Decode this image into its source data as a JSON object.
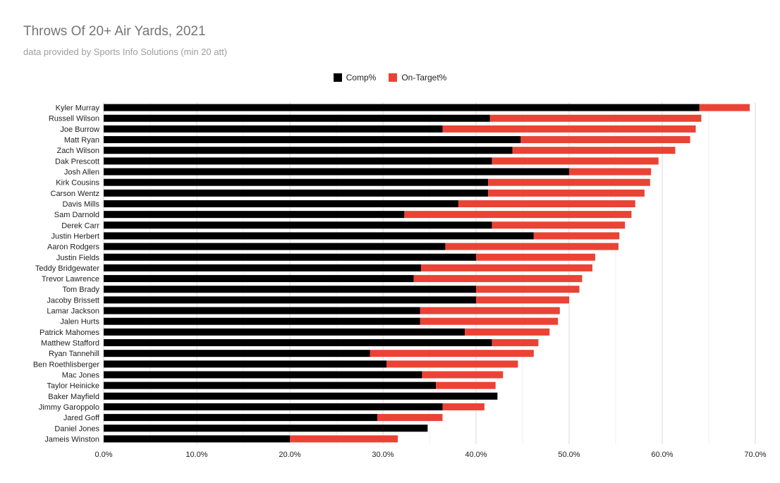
{
  "chart_data": {
    "type": "bar",
    "orientation": "horizontal",
    "stacked": true,
    "title": "Throws Of 20+ Air Yards, 2021",
    "subtitle": "data provided by Sports Info Solutions (min 20 att)",
    "xlabel": "",
    "ylabel": "",
    "xlim": [
      0,
      70
    ],
    "x_ticks": [
      "0.0%",
      "10.0%",
      "20.0%",
      "30.0%",
      "40.0%",
      "50.0%",
      "60.0%",
      "70.0%"
    ],
    "grid": true,
    "legend_position": "top",
    "categories": [
      "Kyler Murray",
      "Russell Wilson",
      "Joe Burrow",
      "Matt Ryan",
      "Zach Wilson",
      "Dak Prescott",
      "Josh Allen",
      "Kirk Cousins",
      "Carson Wentz",
      "Davis Mills",
      "Sam Darnold",
      "Derek Carr",
      "Justin Herbert",
      "Aaron Rodgers",
      "Justin Fields",
      "Teddy Bridgewater",
      "Trevor Lawrence",
      "Tom Brady",
      "Jacoby Brissett",
      "Lamar Jackson",
      "Jalen Hurts",
      "Patrick Mahomes",
      "Matthew Stafford",
      "Ryan Tannehill",
      "Ben Roethlisberger",
      "Mac Jones",
      "Taylor Heinicke",
      "Baker Mayfield",
      "Jimmy Garoppolo",
      "Jared Goff",
      "Daniel Jones",
      "Jameis Winston"
    ],
    "series": [
      {
        "name": "Comp%",
        "color": "#000000",
        "values": [
          64.0,
          41.5,
          36.4,
          44.8,
          43.9,
          41.7,
          50.0,
          41.3,
          41.3,
          38.1,
          32.3,
          41.7,
          46.2,
          36.7,
          40.0,
          34.1,
          33.3,
          40.0,
          40.0,
          34.0,
          34.0,
          38.8,
          41.7,
          28.6,
          30.4,
          34.2,
          35.7,
          42.3,
          36.4,
          29.4,
          34.8,
          20.0
        ]
      },
      {
        "name": "On-Target%",
        "color": "#ea4335",
        "values": [
          5.4,
          22.7,
          27.2,
          18.2,
          17.5,
          17.9,
          8.8,
          17.4,
          16.8,
          19.0,
          24.4,
          14.3,
          9.2,
          18.6,
          12.8,
          18.4,
          18.1,
          11.1,
          10.0,
          15.0,
          14.8,
          9.1,
          5.0,
          17.6,
          14.1,
          8.7,
          6.4,
          0.0,
          4.5,
          7.0,
          0.0,
          11.6
        ]
      }
    ]
  }
}
